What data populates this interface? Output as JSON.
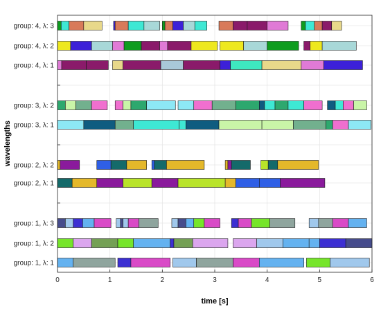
{
  "chart_data": {
    "type": "gantt",
    "xlabel": "time [s]",
    "ylabel": "wavelengths",
    "xlim": [
      0,
      6
    ],
    "x_ticks": [
      0,
      1,
      2,
      3,
      4,
      5,
      6
    ],
    "grid": true,
    "rows": [
      {
        "label": "group: 1, λ: 1",
        "segments": [
          {
            "start": 0.0,
            "end": 0.3,
            "color": "#64b2f0"
          },
          {
            "start": 0.3,
            "end": 1.1,
            "color": "#8fa59e"
          },
          {
            "start": 1.15,
            "end": 1.4,
            "color": "#3c2fd2"
          },
          {
            "start": 1.4,
            "end": 2.15,
            "color": "#d94ac7"
          },
          {
            "start": 2.2,
            "end": 2.65,
            "color": "#a0c8ec"
          },
          {
            "start": 2.65,
            "end": 3.35,
            "color": "#8fa59e"
          },
          {
            "start": 3.35,
            "end": 3.85,
            "color": "#d94ac7"
          },
          {
            "start": 3.85,
            "end": 4.7,
            "color": "#64b2f0"
          },
          {
            "start": 4.75,
            "end": 5.2,
            "color": "#76e52a"
          },
          {
            "start": 5.2,
            "end": 5.95,
            "color": "#a0c8ec"
          }
        ]
      },
      {
        "label": "group: 1, λ: 2",
        "segments": [
          {
            "start": 0.0,
            "end": 0.3,
            "color": "#76e52a"
          },
          {
            "start": 0.3,
            "end": 0.65,
            "color": "#dba6ee"
          },
          {
            "start": 0.65,
            "end": 1.15,
            "color": "#74a055"
          },
          {
            "start": 1.15,
            "end": 1.45,
            "color": "#76e52a"
          },
          {
            "start": 1.45,
            "end": 2.15,
            "color": "#64b2f0"
          },
          {
            "start": 2.15,
            "end": 2.22,
            "color": "#3c2fd2"
          },
          {
            "start": 2.22,
            "end": 2.58,
            "color": "#74a055"
          },
          {
            "start": 2.58,
            "end": 3.25,
            "color": "#dba6ee"
          },
          {
            "start": 3.35,
            "end": 3.8,
            "color": "#dba6ee"
          },
          {
            "start": 3.8,
            "end": 4.3,
            "color": "#a0c8ec"
          },
          {
            "start": 4.3,
            "end": 4.8,
            "color": "#64b2f0"
          },
          {
            "start": 4.8,
            "end": 5.0,
            "color": "#64b2f0"
          },
          {
            "start": 5.0,
            "end": 5.5,
            "color": "#3c2fd2"
          },
          {
            "start": 5.5,
            "end": 6.0,
            "color": "#464c8c"
          }
        ]
      },
      {
        "label": "group: 1, λ: 3",
        "segments": [
          {
            "start": 0.0,
            "end": 0.15,
            "color": "#464c8c"
          },
          {
            "start": 0.15,
            "end": 0.3,
            "color": "#a0c8ec"
          },
          {
            "start": 0.3,
            "end": 0.48,
            "color": "#3c2fd2"
          },
          {
            "start": 0.48,
            "end": 0.7,
            "color": "#64b2f0"
          },
          {
            "start": 0.7,
            "end": 1.02,
            "color": "#d94ac7"
          },
          {
            "start": 1.12,
            "end": 1.2,
            "color": "#a0c8ec"
          },
          {
            "start": 1.2,
            "end": 1.25,
            "color": "#464c8c"
          },
          {
            "start": 1.25,
            "end": 1.35,
            "color": "#a0c8ec"
          },
          {
            "start": 1.35,
            "end": 1.55,
            "color": "#d94ac7"
          },
          {
            "start": 1.55,
            "end": 1.92,
            "color": "#8fa59e"
          },
          {
            "start": 2.18,
            "end": 2.3,
            "color": "#a0c8ec"
          },
          {
            "start": 2.3,
            "end": 2.45,
            "color": "#464c8c"
          },
          {
            "start": 2.45,
            "end": 2.6,
            "color": "#64b2f0"
          },
          {
            "start": 2.6,
            "end": 2.8,
            "color": "#76e52a"
          },
          {
            "start": 2.8,
            "end": 3.1,
            "color": "#d94ac7"
          },
          {
            "start": 3.32,
            "end": 3.45,
            "color": "#3c2fd2"
          },
          {
            "start": 3.45,
            "end": 3.7,
            "color": "#d94ac7"
          },
          {
            "start": 3.7,
            "end": 4.05,
            "color": "#76e52a"
          },
          {
            "start": 4.05,
            "end": 4.53,
            "color": "#8fa59e"
          },
          {
            "start": 4.8,
            "end": 4.98,
            "color": "#a0c8ec"
          },
          {
            "start": 4.98,
            "end": 5.25,
            "color": "#8fa59e"
          },
          {
            "start": 5.25,
            "end": 5.55,
            "color": "#d94ac7"
          },
          {
            "start": 5.55,
            "end": 5.9,
            "color": "#64b2f0"
          }
        ]
      },
      {
        "label": "group: 2, λ: 1",
        "segments": [
          {
            "start": 0.0,
            "end": 0.28,
            "color": "#146a6a"
          },
          {
            "start": 0.28,
            "end": 0.75,
            "color": "#e4b82a"
          },
          {
            "start": 0.75,
            "end": 1.25,
            "color": "#8a1a9c"
          },
          {
            "start": 1.25,
            "end": 1.8,
            "color": "#b9e42a"
          },
          {
            "start": 1.8,
            "end": 2.3,
            "color": "#8a1a9c"
          },
          {
            "start": 2.3,
            "end": 3.2,
            "color": "#b9e42a"
          },
          {
            "start": 3.2,
            "end": 3.4,
            "color": "#e4b82a"
          },
          {
            "start": 3.4,
            "end": 3.85,
            "color": "#2f5fe6"
          },
          {
            "start": 3.85,
            "end": 4.25,
            "color": "#2f5fe6"
          },
          {
            "start": 4.25,
            "end": 5.1,
            "color": "#8a1a9c"
          }
        ]
      },
      {
        "label": "group: 2, λ: 2",
        "segments": [
          {
            "start": 0.0,
            "end": 0.05,
            "color": "#e4b82a"
          },
          {
            "start": 0.05,
            "end": 0.42,
            "color": "#8a1a9c"
          },
          {
            "start": 0.75,
            "end": 1.02,
            "color": "#2f5fe6"
          },
          {
            "start": 1.02,
            "end": 1.32,
            "color": "#146a6a"
          },
          {
            "start": 1.32,
            "end": 1.7,
            "color": "#e4b82a"
          },
          {
            "start": 1.8,
            "end": 1.85,
            "color": "#2f5fe6"
          },
          {
            "start": 1.85,
            "end": 2.08,
            "color": "#146a6a"
          },
          {
            "start": 2.08,
            "end": 2.8,
            "color": "#e4b82a"
          },
          {
            "start": 3.2,
            "end": 3.25,
            "color": "#e4b82a"
          },
          {
            "start": 3.25,
            "end": 3.32,
            "color": "#8a1a9c"
          },
          {
            "start": 3.32,
            "end": 3.68,
            "color": "#146a6a"
          },
          {
            "start": 3.88,
            "end": 4.02,
            "color": "#b9e42a"
          },
          {
            "start": 4.02,
            "end": 4.2,
            "color": "#146a6a"
          },
          {
            "start": 4.2,
            "end": 4.98,
            "color": "#e4b82a"
          }
        ]
      },
      {
        "label": "group: 3, λ: 1",
        "segments": [
          {
            "start": 0.0,
            "end": 0.5,
            "color": "#8de8f5"
          },
          {
            "start": 0.5,
            "end": 1.1,
            "color": "#0f5c80"
          },
          {
            "start": 1.1,
            "end": 1.45,
            "color": "#72b08e"
          },
          {
            "start": 1.45,
            "end": 2.32,
            "color": "#3ee8d4"
          },
          {
            "start": 2.32,
            "end": 2.45,
            "color": "#3ee8d4"
          },
          {
            "start": 2.45,
            "end": 3.08,
            "color": "#0f5c80"
          },
          {
            "start": 3.08,
            "end": 3.9,
            "color": "#c9f5a8"
          },
          {
            "start": 3.9,
            "end": 4.5,
            "color": "#c9f5a8"
          },
          {
            "start": 4.5,
            "end": 5.12,
            "color": "#72b08e"
          },
          {
            "start": 5.12,
            "end": 5.25,
            "color": "#2da86e"
          },
          {
            "start": 5.25,
            "end": 5.55,
            "color": "#f06fcf"
          },
          {
            "start": 5.55,
            "end": 5.98,
            "color": "#8de8f5"
          }
        ]
      },
      {
        "label": "group: 3, λ: 2",
        "segments": [
          {
            "start": 0.0,
            "end": 0.15,
            "color": "#2da86e"
          },
          {
            "start": 0.15,
            "end": 0.35,
            "color": "#c9f5a8"
          },
          {
            "start": 0.35,
            "end": 0.65,
            "color": "#72b08e"
          },
          {
            "start": 0.65,
            "end": 0.95,
            "color": "#f06fcf"
          },
          {
            "start": 1.1,
            "end": 1.25,
            "color": "#f06fcf"
          },
          {
            "start": 1.25,
            "end": 1.4,
            "color": "#c9f5a8"
          },
          {
            "start": 1.4,
            "end": 1.7,
            "color": "#2da86e"
          },
          {
            "start": 1.7,
            "end": 2.25,
            "color": "#8de8f5"
          },
          {
            "start": 2.3,
            "end": 2.6,
            "color": "#8de8f5"
          },
          {
            "start": 2.6,
            "end": 2.95,
            "color": "#f06fcf"
          },
          {
            "start": 2.95,
            "end": 3.4,
            "color": "#72b08e"
          },
          {
            "start": 3.4,
            "end": 3.85,
            "color": "#2da86e"
          },
          {
            "start": 3.85,
            "end": 3.95,
            "color": "#0f5c80"
          },
          {
            "start": 3.95,
            "end": 4.15,
            "color": "#3ee8d4"
          },
          {
            "start": 4.15,
            "end": 4.4,
            "color": "#2da86e"
          },
          {
            "start": 4.4,
            "end": 4.7,
            "color": "#3ee8d4"
          },
          {
            "start": 4.7,
            "end": 5.05,
            "color": "#f06fcf"
          },
          {
            "start": 5.15,
            "end": 5.3,
            "color": "#0f5c80"
          },
          {
            "start": 5.3,
            "end": 5.45,
            "color": "#3ee8d4"
          },
          {
            "start": 5.45,
            "end": 5.65,
            "color": "#f06fcf"
          },
          {
            "start": 5.65,
            "end": 5.9,
            "color": "#c9f5a8"
          }
        ]
      },
      {
        "label": "group: 4, λ: 1",
        "segments": [
          {
            "start": 0.0,
            "end": 0.08,
            "color": "#e07ad6"
          },
          {
            "start": 0.08,
            "end": 0.55,
            "color": "#8a1a6a"
          },
          {
            "start": 0.55,
            "end": 0.97,
            "color": "#8a1a6a"
          },
          {
            "start": 1.05,
            "end": 1.25,
            "color": "#e8d88a"
          },
          {
            "start": 1.25,
            "end": 1.97,
            "color": "#8a1a6a"
          },
          {
            "start": 1.97,
            "end": 2.4,
            "color": "#a8c8d8"
          },
          {
            "start": 2.4,
            "end": 3.1,
            "color": "#8a1a6a"
          },
          {
            "start": 3.1,
            "end": 3.3,
            "color": "#3c20d8"
          },
          {
            "start": 3.3,
            "end": 3.9,
            "color": "#3ee8c0"
          },
          {
            "start": 3.9,
            "end": 4.65,
            "color": "#e8d88a"
          },
          {
            "start": 4.65,
            "end": 5.08,
            "color": "#e07ad6"
          },
          {
            "start": 5.08,
            "end": 5.82,
            "color": "#3c20d8"
          }
        ]
      },
      {
        "label": "group: 4, λ: 2",
        "segments": [
          {
            "start": 0.0,
            "end": 0.25,
            "color": "#eee81e"
          },
          {
            "start": 0.25,
            "end": 0.65,
            "color": "#3c20d8"
          },
          {
            "start": 0.65,
            "end": 1.05,
            "color": "#a8d8d8"
          },
          {
            "start": 1.05,
            "end": 1.27,
            "color": "#e07ad6"
          },
          {
            "start": 1.27,
            "end": 1.6,
            "color": "#0e9c1e"
          },
          {
            "start": 1.6,
            "end": 1.95,
            "color": "#8a1a6a"
          },
          {
            "start": 1.95,
            "end": 2.1,
            "color": "#e07ad6"
          },
          {
            "start": 2.1,
            "end": 2.55,
            "color": "#8a1a6a"
          },
          {
            "start": 2.55,
            "end": 3.05,
            "color": "#eee81e"
          },
          {
            "start": 3.1,
            "end": 3.55,
            "color": "#eee81e"
          },
          {
            "start": 3.55,
            "end": 4.0,
            "color": "#a8d8d8"
          },
          {
            "start": 4.0,
            "end": 4.6,
            "color": "#0e9c1e"
          },
          {
            "start": 4.7,
            "end": 4.82,
            "color": "#8a1a6a"
          },
          {
            "start": 4.82,
            "end": 5.05,
            "color": "#eee81e"
          },
          {
            "start": 5.05,
            "end": 5.7,
            "color": "#a8d8d8"
          }
        ]
      },
      {
        "label": "group: 4, λ: 3",
        "segments": [
          {
            "start": 0.0,
            "end": 0.07,
            "color": "#0e9c1e"
          },
          {
            "start": 0.07,
            "end": 0.22,
            "color": "#3ee8d4"
          },
          {
            "start": 0.22,
            "end": 0.5,
            "color": "#d87a5a"
          },
          {
            "start": 0.5,
            "end": 0.85,
            "color": "#e8d88a"
          },
          {
            "start": 1.07,
            "end": 1.1,
            "color": "#3c20d8"
          },
          {
            "start": 1.1,
            "end": 1.35,
            "color": "#d87a5a"
          },
          {
            "start": 1.35,
            "end": 1.65,
            "color": "#3ee8d4"
          },
          {
            "start": 1.65,
            "end": 1.95,
            "color": "#a8d8d8"
          },
          {
            "start": 2.0,
            "end": 2.05,
            "color": "#0e9c1e"
          },
          {
            "start": 2.05,
            "end": 2.2,
            "color": "#d87a5a"
          },
          {
            "start": 2.2,
            "end": 2.4,
            "color": "#3c20d8"
          },
          {
            "start": 2.4,
            "end": 2.62,
            "color": "#a8d8d8"
          },
          {
            "start": 2.62,
            "end": 2.85,
            "color": "#3ee8d4"
          },
          {
            "start": 3.08,
            "end": 3.35,
            "color": "#d87a5a"
          },
          {
            "start": 3.35,
            "end": 3.62,
            "color": "#8a1a6a"
          },
          {
            "start": 3.62,
            "end": 4.0,
            "color": "#8a1a6a"
          },
          {
            "start": 4.0,
            "end": 4.4,
            "color": "#e07ad6"
          },
          {
            "start": 4.65,
            "end": 4.73,
            "color": "#0e9c1e"
          },
          {
            "start": 4.73,
            "end": 4.9,
            "color": "#3ee8d4"
          },
          {
            "start": 4.9,
            "end": 5.05,
            "color": "#d87a5a"
          },
          {
            "start": 5.05,
            "end": 5.23,
            "color": "#8a1a6a"
          },
          {
            "start": 5.23,
            "end": 5.42,
            "color": "#e8d88a"
          }
        ]
      }
    ]
  }
}
